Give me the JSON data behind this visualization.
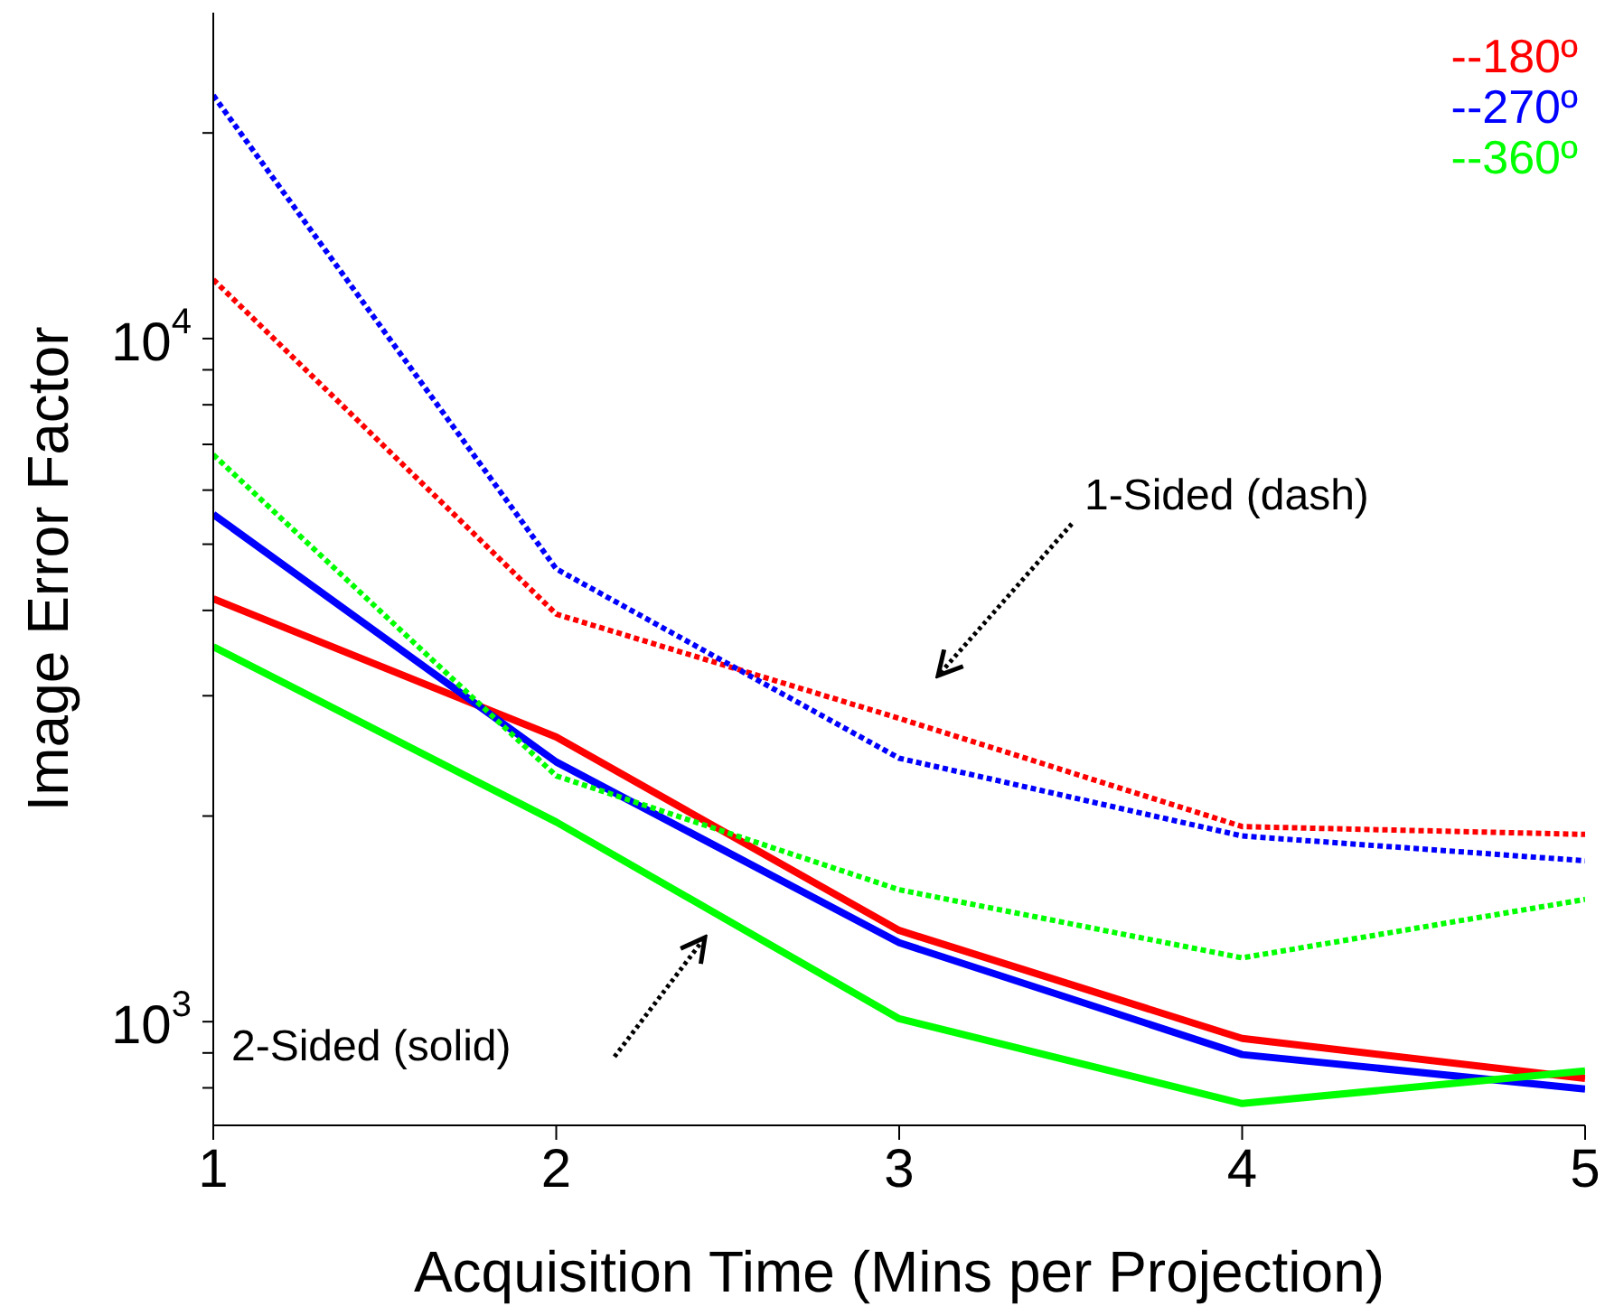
{
  "chart_data": {
    "type": "line",
    "xlabel": "Acquisition Time (Mins per Projection)",
    "ylabel": "Image Error Factor",
    "log": "y",
    "x": [
      1,
      2,
      3,
      4,
      5
    ],
    "series": [
      {
        "name": "--180º",
        "color": "#ff0000",
        "line_style": "solid",
        "values": [
          4160,
          2610,
          1360,
          945,
          826
        ]
      },
      {
        "name": "--270º",
        "color": "#0000ff",
        "line_style": "solid",
        "values": [
          5530,
          2400,
          1305,
          895,
          797
        ]
      },
      {
        "name": "--360º",
        "color": "#00ff00",
        "line_style": "solid",
        "values": [
          3540,
          1960,
          1010,
          759,
          847
        ]
      },
      {
        "color": "#ff0000",
        "line_style": "dashed",
        "values": [
          12200,
          3950,
          2780,
          1930,
          1880
        ]
      },
      {
        "color": "#0000ff",
        "line_style": "dashed",
        "values": [
          22700,
          4600,
          2430,
          1870,
          1720
        ]
      },
      {
        "color": "#00ff00",
        "line_style": "dashed",
        "values": [
          6760,
          2290,
          1560,
          1240,
          1510
        ]
      }
    ],
    "xlim": [
      1,
      5
    ],
    "xticks": [
      1,
      2,
      3,
      4,
      5
    ],
    "ylim": [
      705,
      30000
    ],
    "yticks": [
      {
        "value": 800,
        "label": null
      },
      {
        "value": 900,
        "label": null
      },
      {
        "value": 1000,
        "label": "10$^{3}$"
      },
      {
        "value": 2000,
        "label": null
      },
      {
        "value": 3000,
        "label": null
      },
      {
        "value": 4000,
        "label": null
      },
      {
        "value": 5000,
        "label": null
      },
      {
        "value": 6000,
        "label": null
      },
      {
        "value": 7000,
        "label": null
      },
      {
        "value": 8000,
        "label": null
      },
      {
        "value": 9000,
        "label": null
      },
      {
        "value": 10000,
        "label": "10$^{4}$"
      },
      {
        "value": 20000,
        "label": null
      }
    ],
    "grid": false,
    "legend": "top right",
    "annotations": [
      "1-Sided (dash)",
      "2-Sided (solid)"
    ]
  }
}
